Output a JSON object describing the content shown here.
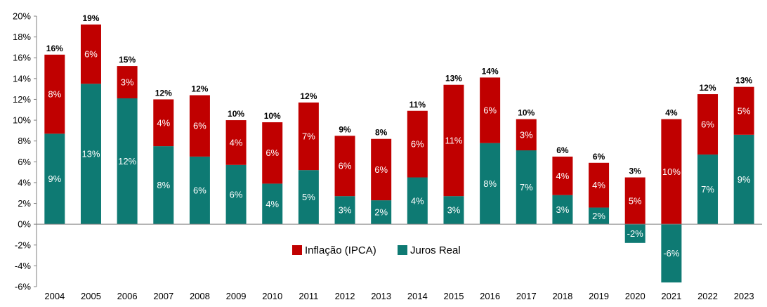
{
  "chart_data": {
    "type": "bar",
    "stacked": true,
    "categories": [
      "2004",
      "2005",
      "2006",
      "2007",
      "2008",
      "2009",
      "2010",
      "2011",
      "2012",
      "2013",
      "2014",
      "2015",
      "2016",
      "2017",
      "2018",
      "2019",
      "2020",
      "2021",
      "2022",
      "2023"
    ],
    "series": [
      {
        "name": "Juros Real",
        "color": "#0e7a73",
        "values": [
          8.7,
          13.5,
          12.1,
          7.5,
          6.5,
          5.7,
          3.9,
          5.2,
          2.7,
          2.3,
          4.5,
          2.7,
          7.8,
          7.1,
          2.8,
          1.6,
          -1.8,
          -5.6,
          6.7,
          8.6
        ],
        "labels": [
          "9%",
          "13%",
          "12%",
          "8%",
          "6%",
          "6%",
          "4%",
          "5%",
          "3%",
          "2%",
          "4%",
          "3%",
          "8%",
          "7%",
          "3%",
          "2%",
          "-2%",
          "-6%",
          "7%",
          "9%"
        ]
      },
      {
        "name": "Inflação (IPCA)",
        "color": "#c00000",
        "values": [
          7.6,
          5.7,
          3.1,
          4.5,
          5.9,
          4.3,
          5.9,
          6.5,
          5.8,
          5.9,
          6.4,
          10.7,
          6.3,
          3.0,
          3.7,
          4.3,
          4.5,
          10.1,
          5.8,
          4.6
        ],
        "labels": [
          "8%",
          "6%",
          "3%",
          "4%",
          "6%",
          "4%",
          "6%",
          "7%",
          "6%",
          "6%",
          "6%",
          "11%",
          "6%",
          "3%",
          "4%",
          "4%",
          "5%",
          "10%",
          "6%",
          "5%"
        ]
      }
    ],
    "totals": [
      "16%",
      "19%",
      "15%",
      "12%",
      "12%",
      "10%",
      "10%",
      "12%",
      "9%",
      "8%",
      "11%",
      "13%",
      "14%",
      "10%",
      "6%",
      "6%",
      "3%",
      "4%",
      "12%",
      "13%"
    ],
    "ylim": [
      -6,
      20
    ],
    "yticks": [
      -6,
      -4,
      -2,
      0,
      2,
      4,
      6,
      8,
      10,
      12,
      14,
      16,
      18,
      20
    ],
    "ytick_labels": [
      "-6%",
      "-4%",
      "-2%",
      "0%",
      "2%",
      "4%",
      "6%",
      "8%",
      "10%",
      "12%",
      "14%",
      "16%",
      "18%",
      "20%"
    ],
    "legend": {
      "position": "bottom-center-inside",
      "entries": [
        {
          "label": "Inflação (IPCA)",
          "color": "#c00000"
        },
        {
          "label": "Juros Real",
          "color": "#0e7a73"
        }
      ]
    },
    "grid": false
  }
}
